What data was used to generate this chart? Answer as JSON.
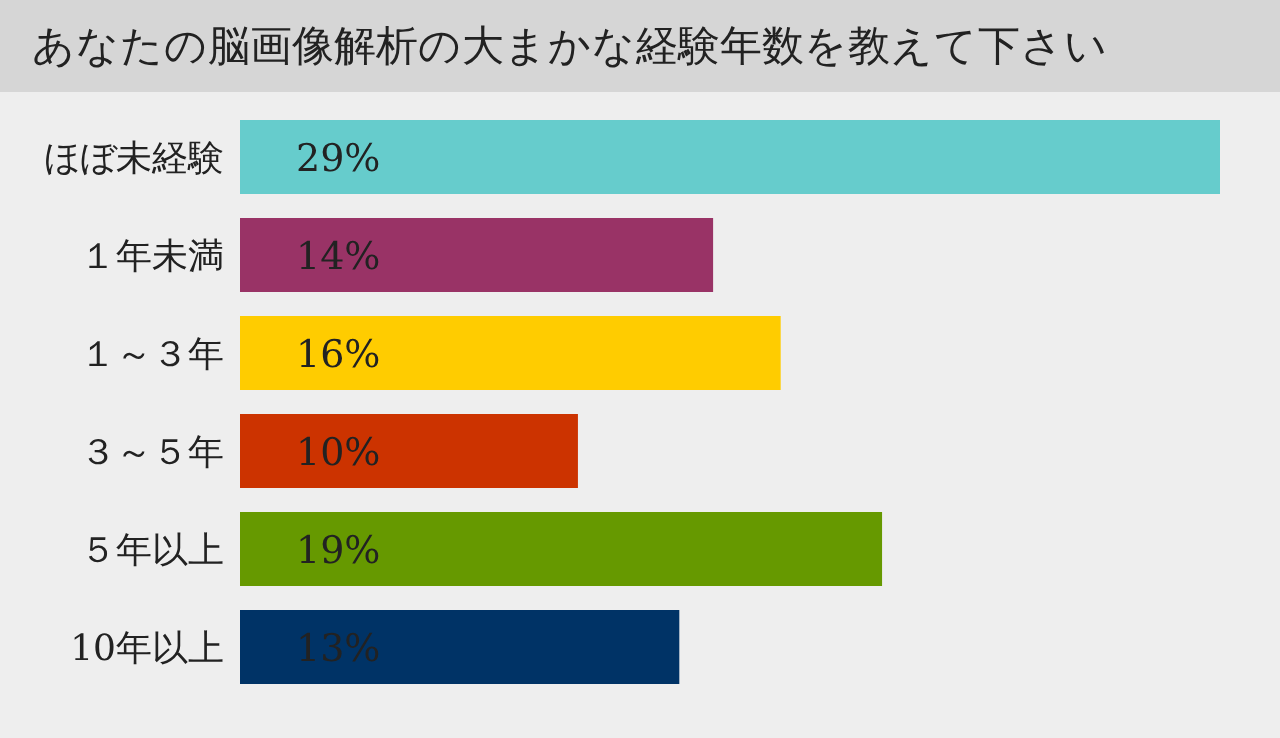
{
  "chart_data": {
    "type": "bar",
    "orientation": "horizontal",
    "tick_labels": "y",
    "title": "あなたの脳画像解析の大まかな経験年数を教えて下さい",
    "categories": [
      "ほぼ未経験",
      "１年未満",
      "１～３年",
      "３～５年",
      "５年以上",
      "10年以上"
    ],
    "values": [
      29,
      14,
      16,
      10,
      19,
      13
    ],
    "value_labels": [
      "29%",
      "14%",
      "16%",
      "10%",
      "19%",
      "13%"
    ],
    "colors": [
      "#66cccc",
      "#993366",
      "#ffcc00",
      "#cc3300",
      "#669900",
      "#003366"
    ],
    "grid": false,
    "legend": false
  }
}
